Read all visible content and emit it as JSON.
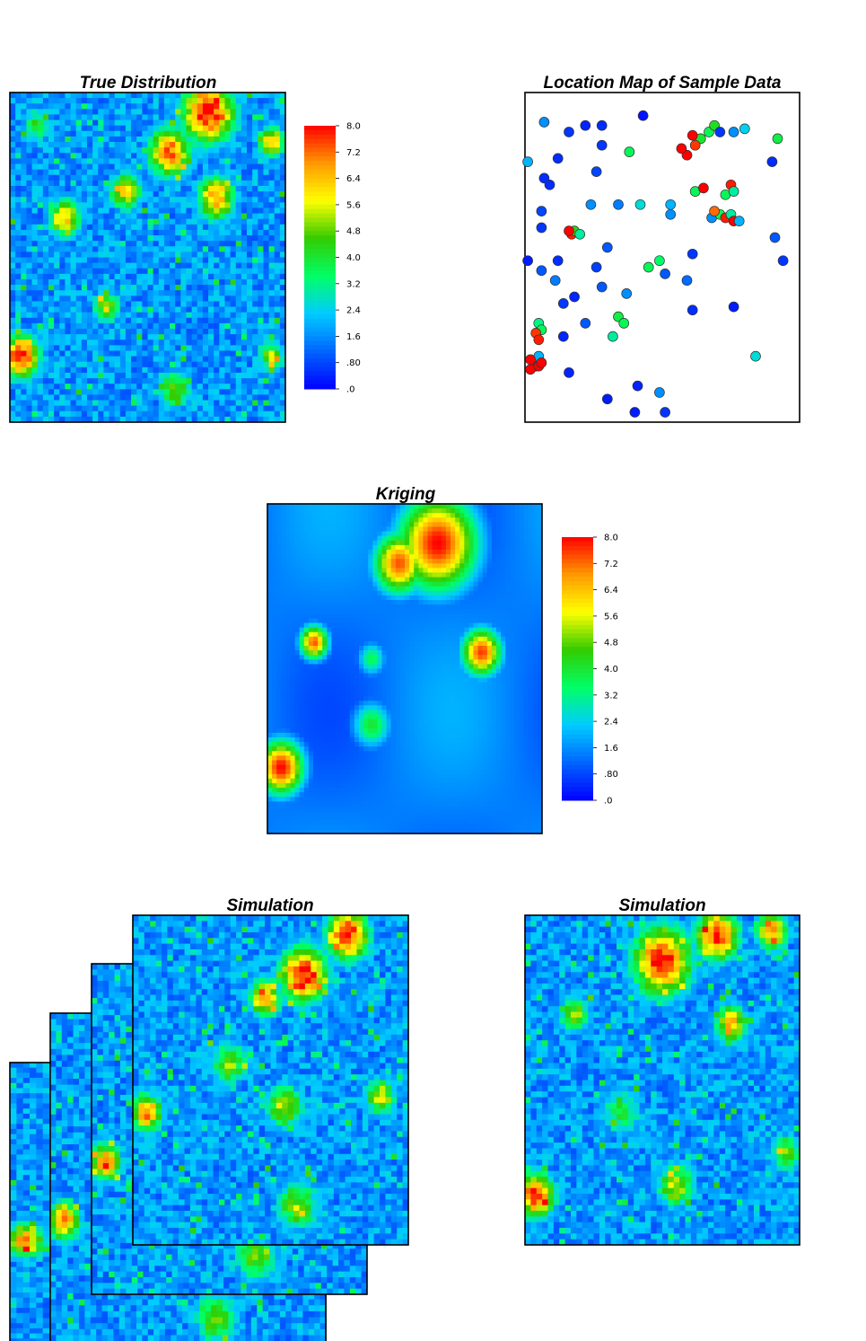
{
  "colors": {
    "scale": [
      "#0000ff",
      "#0066ff",
      "#00ccff",
      "#00ff66",
      "#33cc00",
      "#ffff00",
      "#ff9900",
      "#ff0000"
    ],
    "frame": "#000000",
    "marker_outline": "#333333"
  },
  "chart_data": [
    {
      "id": "true-distribution",
      "type": "heatmap",
      "title": "True Distribution",
      "grid": [
        50,
        60
      ],
      "value_range": [
        0,
        8.0
      ],
      "description_values": "high-value patches upper-right and left edge, low values center-bottom",
      "seed": 11,
      "hotspots": [
        {
          "x": 0.72,
          "y": 0.06,
          "v": 8.0,
          "r": 0.1
        },
        {
          "x": 0.58,
          "y": 0.18,
          "v": 7.2,
          "r": 0.08
        },
        {
          "x": 0.75,
          "y": 0.32,
          "v": 7.0,
          "r": 0.07
        },
        {
          "x": 0.2,
          "y": 0.38,
          "v": 6.5,
          "r": 0.06
        },
        {
          "x": 0.42,
          "y": 0.3,
          "v": 6.0,
          "r": 0.06
        },
        {
          "x": 0.35,
          "y": 0.65,
          "v": 5.5,
          "r": 0.05
        },
        {
          "x": 0.04,
          "y": 0.8,
          "v": 8.0,
          "r": 0.07
        },
        {
          "x": 0.6,
          "y": 0.9,
          "v": 5.0,
          "r": 0.06
        },
        {
          "x": 0.95,
          "y": 0.8,
          "v": 5.0,
          "r": 0.05
        },
        {
          "x": 0.1,
          "y": 0.1,
          "v": 4.0,
          "r": 0.06
        },
        {
          "x": 0.95,
          "y": 0.15,
          "v": 6.5,
          "r": 0.05
        }
      ]
    },
    {
      "id": "location-map",
      "type": "scatter",
      "title": "Location Map of Sample Data",
      "xlim": [
        0,
        1
      ],
      "ylim": [
        0,
        1
      ],
      "points": [
        {
          "x": 0.07,
          "y": 0.91,
          "v": 1.6
        },
        {
          "x": 0.16,
          "y": 0.88,
          "v": 0.6
        },
        {
          "x": 0.22,
          "y": 0.9,
          "v": 0.4
        },
        {
          "x": 0.28,
          "y": 0.9,
          "v": 0.5
        },
        {
          "x": 0.43,
          "y": 0.93,
          "v": 0.2
        },
        {
          "x": 0.28,
          "y": 0.84,
          "v": 0.6
        },
        {
          "x": 0.38,
          "y": 0.82,
          "v": 3.6
        },
        {
          "x": 0.12,
          "y": 0.8,
          "v": 0.5
        },
        {
          "x": 0.01,
          "y": 0.79,
          "v": 2.0
        },
        {
          "x": 0.26,
          "y": 0.76,
          "v": 0.8
        },
        {
          "x": 0.07,
          "y": 0.74,
          "v": 0.5
        },
        {
          "x": 0.09,
          "y": 0.72,
          "v": 0.5
        },
        {
          "x": 0.06,
          "y": 0.64,
          "v": 0.8
        },
        {
          "x": 0.24,
          "y": 0.66,
          "v": 1.6
        },
        {
          "x": 0.34,
          "y": 0.66,
          "v": 1.4
        },
        {
          "x": 0.42,
          "y": 0.66,
          "v": 2.6
        },
        {
          "x": 0.53,
          "y": 0.66,
          "v": 2.0
        },
        {
          "x": 0.53,
          "y": 0.63,
          "v": 1.6
        },
        {
          "x": 0.64,
          "y": 0.86,
          "v": 4.0
        },
        {
          "x": 0.67,
          "y": 0.88,
          "v": 3.6
        },
        {
          "x": 0.61,
          "y": 0.87,
          "v": 8.0
        },
        {
          "x": 0.62,
          "y": 0.84,
          "v": 7.6
        },
        {
          "x": 0.59,
          "y": 0.81,
          "v": 8.0
        },
        {
          "x": 0.57,
          "y": 0.83,
          "v": 8.0
        },
        {
          "x": 0.69,
          "y": 0.9,
          "v": 4.2
        },
        {
          "x": 0.71,
          "y": 0.88,
          "v": 0.6
        },
        {
          "x": 0.76,
          "y": 0.88,
          "v": 1.6
        },
        {
          "x": 0.8,
          "y": 0.89,
          "v": 2.4
        },
        {
          "x": 0.92,
          "y": 0.86,
          "v": 3.8
        },
        {
          "x": 0.9,
          "y": 0.79,
          "v": 0.5
        },
        {
          "x": 0.62,
          "y": 0.7,
          "v": 3.6
        },
        {
          "x": 0.65,
          "y": 0.71,
          "v": 8.0
        },
        {
          "x": 0.73,
          "y": 0.69,
          "v": 3.6
        },
        {
          "x": 0.75,
          "y": 0.72,
          "v": 7.8
        },
        {
          "x": 0.76,
          "y": 0.7,
          "v": 3.0
        },
        {
          "x": 0.68,
          "y": 0.62,
          "v": 1.6
        },
        {
          "x": 0.71,
          "y": 0.63,
          "v": 3.6
        },
        {
          "x": 0.69,
          "y": 0.64,
          "v": 7.2
        },
        {
          "x": 0.73,
          "y": 0.62,
          "v": 7.8
        },
        {
          "x": 0.75,
          "y": 0.63,
          "v": 3.0
        },
        {
          "x": 0.76,
          "y": 0.61,
          "v": 8.0
        },
        {
          "x": 0.78,
          "y": 0.61,
          "v": 2.0
        },
        {
          "x": 0.17,
          "y": 0.57,
          "v": 7.8
        },
        {
          "x": 0.18,
          "y": 0.58,
          "v": 4.4
        },
        {
          "x": 0.2,
          "y": 0.57,
          "v": 3.0
        },
        {
          "x": 0.16,
          "y": 0.58,
          "v": 8.0
        },
        {
          "x": 0.06,
          "y": 0.59,
          "v": 0.6
        },
        {
          "x": 0.3,
          "y": 0.53,
          "v": 1.0
        },
        {
          "x": 0.01,
          "y": 0.49,
          "v": 0.3
        },
        {
          "x": 0.12,
          "y": 0.49,
          "v": 0.5
        },
        {
          "x": 0.26,
          "y": 0.47,
          "v": 0.7
        },
        {
          "x": 0.06,
          "y": 0.46,
          "v": 1.0
        },
        {
          "x": 0.11,
          "y": 0.43,
          "v": 1.4
        },
        {
          "x": 0.45,
          "y": 0.47,
          "v": 3.6
        },
        {
          "x": 0.49,
          "y": 0.49,
          "v": 3.4
        },
        {
          "x": 0.51,
          "y": 0.45,
          "v": 1.0
        },
        {
          "x": 0.61,
          "y": 0.51,
          "v": 0.6
        },
        {
          "x": 0.59,
          "y": 0.43,
          "v": 1.2
        },
        {
          "x": 0.91,
          "y": 0.56,
          "v": 1.0
        },
        {
          "x": 0.94,
          "y": 0.49,
          "v": 0.6
        },
        {
          "x": 0.28,
          "y": 0.41,
          "v": 1.0
        },
        {
          "x": 0.37,
          "y": 0.39,
          "v": 1.6
        },
        {
          "x": 0.18,
          "y": 0.38,
          "v": 0.4
        },
        {
          "x": 0.14,
          "y": 0.36,
          "v": 0.6
        },
        {
          "x": 0.61,
          "y": 0.34,
          "v": 0.5
        },
        {
          "x": 0.76,
          "y": 0.35,
          "v": 0.3
        },
        {
          "x": 0.34,
          "y": 0.32,
          "v": 3.8
        },
        {
          "x": 0.36,
          "y": 0.3,
          "v": 3.6
        },
        {
          "x": 0.22,
          "y": 0.3,
          "v": 1.0
        },
        {
          "x": 0.32,
          "y": 0.26,
          "v": 3.0
        },
        {
          "x": 0.05,
          "y": 0.3,
          "v": 3.2
        },
        {
          "x": 0.06,
          "y": 0.28,
          "v": 3.6
        },
        {
          "x": 0.04,
          "y": 0.27,
          "v": 7.6
        },
        {
          "x": 0.05,
          "y": 0.25,
          "v": 7.8
        },
        {
          "x": 0.14,
          "y": 0.26,
          "v": 0.4
        },
        {
          "x": 0.05,
          "y": 0.2,
          "v": 2.0
        },
        {
          "x": 0.04,
          "y": 0.17,
          "v": 8.0
        },
        {
          "x": 0.02,
          "y": 0.16,
          "v": 8.0
        },
        {
          "x": 0.05,
          "y": 0.17,
          "v": 8.0
        },
        {
          "x": 0.02,
          "y": 0.19,
          "v": 8.0
        },
        {
          "x": 0.06,
          "y": 0.18,
          "v": 8.0
        },
        {
          "x": 0.84,
          "y": 0.2,
          "v": 2.6
        },
        {
          "x": 0.16,
          "y": 0.15,
          "v": 0.4
        },
        {
          "x": 0.3,
          "y": 0.07,
          "v": 0.3
        },
        {
          "x": 0.41,
          "y": 0.11,
          "v": 0.4
        },
        {
          "x": 0.49,
          "y": 0.09,
          "v": 1.6
        },
        {
          "x": 0.4,
          "y": 0.03,
          "v": 0.3
        },
        {
          "x": 0.51,
          "y": 0.03,
          "v": 0.6
        }
      ]
    },
    {
      "id": "kriging",
      "type": "heatmap",
      "title": "Kriging",
      "grid": [
        60,
        72
      ],
      "value_range": [
        0,
        8.0
      ],
      "smooth": true,
      "seed": 5,
      "hotspots": [
        {
          "x": 0.62,
          "y": 0.12,
          "v": 8.0,
          "r": 0.14
        },
        {
          "x": 0.48,
          "y": 0.18,
          "v": 7.4,
          "r": 0.09
        },
        {
          "x": 0.78,
          "y": 0.45,
          "v": 7.6,
          "r": 0.07
        },
        {
          "x": 0.17,
          "y": 0.42,
          "v": 7.4,
          "r": 0.05
        },
        {
          "x": 0.38,
          "y": 0.47,
          "v": 3.6,
          "r": 0.05
        },
        {
          "x": 0.38,
          "y": 0.67,
          "v": 4.0,
          "r": 0.07
        },
        {
          "x": 0.05,
          "y": 0.8,
          "v": 8.0,
          "r": 0.08
        },
        {
          "x": 0.55,
          "y": 0.7,
          "v": 1.6,
          "r": 0.15
        },
        {
          "x": 0.88,
          "y": 0.25,
          "v": 1.4,
          "r": 0.12
        }
      ]
    },
    {
      "id": "simulation-stack",
      "type": "heatmap",
      "title": "Simulation",
      "grid": [
        48,
        58
      ],
      "value_range": [
        0,
        8.0
      ],
      "seed": 23,
      "hotspots": [
        {
          "x": 0.62,
          "y": 0.18,
          "v": 8.0,
          "r": 0.09
        },
        {
          "x": 0.78,
          "y": 0.06,
          "v": 8.0,
          "r": 0.08
        },
        {
          "x": 0.48,
          "y": 0.25,
          "v": 7.0,
          "r": 0.06
        },
        {
          "x": 0.05,
          "y": 0.6,
          "v": 7.0,
          "r": 0.06
        },
        {
          "x": 0.55,
          "y": 0.58,
          "v": 5.5,
          "r": 0.07
        },
        {
          "x": 0.35,
          "y": 0.45,
          "v": 5.0,
          "r": 0.07
        },
        {
          "x": 0.9,
          "y": 0.55,
          "v": 5.5,
          "r": 0.06
        },
        {
          "x": 0.6,
          "y": 0.88,
          "v": 5.0,
          "r": 0.08
        }
      ]
    },
    {
      "id": "simulation-single",
      "type": "heatmap",
      "title": "Simulation",
      "grid": [
        48,
        58
      ],
      "value_range": [
        0,
        8.0
      ],
      "seed": 41,
      "hotspots": [
        {
          "x": 0.5,
          "y": 0.14,
          "v": 8.0,
          "r": 0.11
        },
        {
          "x": 0.7,
          "y": 0.06,
          "v": 8.0,
          "r": 0.08
        },
        {
          "x": 0.9,
          "y": 0.05,
          "v": 7.0,
          "r": 0.06
        },
        {
          "x": 0.75,
          "y": 0.33,
          "v": 6.5,
          "r": 0.06
        },
        {
          "x": 0.18,
          "y": 0.3,
          "v": 5.0,
          "r": 0.06
        },
        {
          "x": 0.04,
          "y": 0.85,
          "v": 8.0,
          "r": 0.07
        },
        {
          "x": 0.55,
          "y": 0.82,
          "v": 5.5,
          "r": 0.07
        },
        {
          "x": 0.95,
          "y": 0.72,
          "v": 5.0,
          "r": 0.06
        },
        {
          "x": 0.35,
          "y": 0.6,
          "v": 4.0,
          "r": 0.08
        }
      ]
    }
  ],
  "colorbar": {
    "ticks": [
      "8.0",
      "7.2",
      "6.4",
      "5.6",
      "4.8",
      "4.0",
      "3.2",
      "2.4",
      "1.6",
      ".80",
      ".0"
    ],
    "range": [
      0,
      8.0
    ]
  }
}
